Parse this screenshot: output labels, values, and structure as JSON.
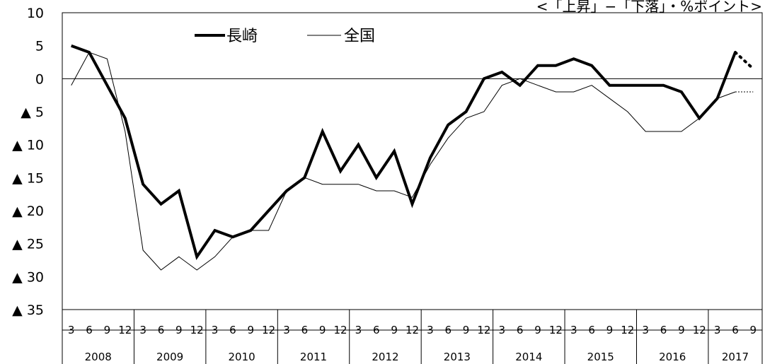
{
  "note": "<「上昇」−「下落」・%ポイント>",
  "chart_data": {
    "type": "line",
    "ylim": [
      -35,
      10
    ],
    "yticks": [
      10,
      5,
      0,
      -5,
      -10,
      -15,
      -20,
      -25,
      -30,
      -35
    ],
    "ytick_labels": [
      "10",
      "5",
      "0",
      "▲ 5",
      "▲ 10",
      "▲ 15",
      "▲ 20",
      "▲ 25",
      "▲ 30",
      "▲ 35"
    ],
    "month_labels": [
      "3",
      "6",
      "9",
      "12",
      "3",
      "6",
      "9",
      "12",
      "3",
      "6",
      "9",
      "12",
      "3",
      "6",
      "9",
      "12",
      "3",
      "6",
      "9",
      "12",
      "3",
      "6",
      "9",
      "12",
      "3",
      "6",
      "9",
      "12",
      "3",
      "6",
      "9",
      "12",
      "3",
      "6",
      "9",
      "12",
      "3",
      "6",
      "9"
    ],
    "years": [
      "2008",
      "2009",
      "2010",
      "2011",
      "2012",
      "2013",
      "2014",
      "2015",
      "2016",
      "2017"
    ],
    "grid": false,
    "legend": "top-left",
    "series": [
      {
        "name": "長崎",
        "color": "#000000",
        "values": [
          5,
          4,
          -1,
          -6,
          -16,
          -19,
          -17,
          -27,
          -23,
          -24,
          -23,
          -20,
          -17,
          -15,
          -8,
          -14,
          -10,
          -15,
          -11,
          -19,
          -12,
          -7,
          -5,
          0,
          1,
          -1,
          2,
          2,
          3,
          2,
          -1,
          -1,
          -1,
          -1,
          -2,
          -6,
          -3,
          4,
          null
        ],
        "forecast": {
          "from_index": 37,
          "values": [
            4,
            1.5
          ]
        }
      },
      {
        "name": "全国",
        "color": "#000000",
        "values": [
          -1,
          4,
          3,
          -8,
          -26,
          -29,
          -27,
          -29,
          -27,
          -24,
          -23,
          -23,
          -17,
          -15,
          -16,
          -16,
          -16,
          -17,
          -17,
          -18,
          -13,
          -9,
          -6,
          -5,
          -1,
          0,
          -1,
          -2,
          -2,
          -1,
          -3,
          -5,
          -8,
          -8,
          -8,
          -6,
          -3,
          -2,
          null
        ],
        "forecast": {
          "from_index": 37,
          "values": [
            -2,
            -2
          ]
        }
      }
    ]
  }
}
